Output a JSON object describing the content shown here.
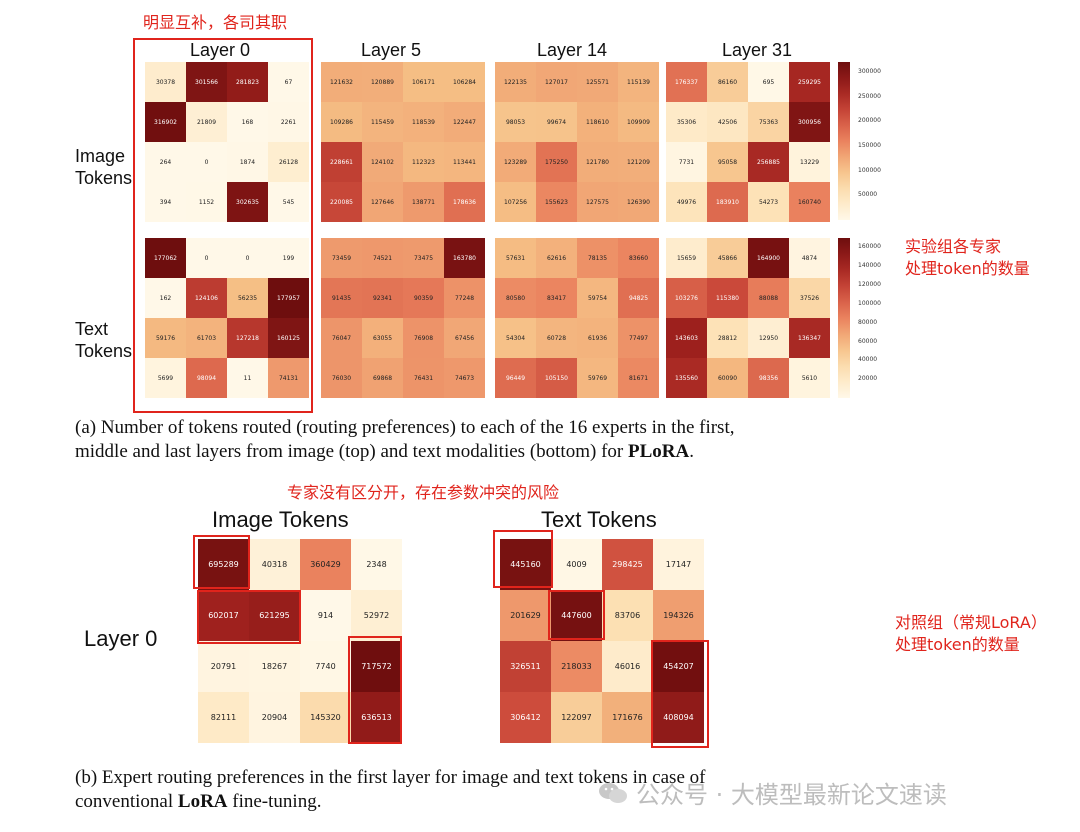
{
  "annotations": {
    "top_note": "明显互补，各司其职",
    "right_note_line1": "实验组各专家",
    "right_note_line2": "处理token的数量",
    "mid_note": "专家没有区分开，存在参数冲突的风险",
    "right_note2_line1": "对照组（常规LoRA）",
    "right_note2_line2": "处理token的数量"
  },
  "row_labels": {
    "image_line1": "Image",
    "image_line2": "Tokens",
    "text_line1": "Text",
    "text_line2": "Tokens",
    "layer0_b": "Layer 0"
  },
  "captions": {
    "a_line1": "(a) Number of tokens routed (routing preferences) to each of the 16 experts in the first,",
    "a_line2_pre": "middle and last layers from image (top) and text modalities (bottom) for ",
    "a_line2_bold": "PLoRA",
    "a_line2_post": ".",
    "b_line1": "(b) Expert routing preferences in the first layer for image and text tokens in case of",
    "b_line2_pre": "conventional ",
    "b_line2_bold": "LoRA",
    "b_line2_post": " fine-tuning."
  },
  "watermark": {
    "icon": "wechat-icon",
    "text": "公众号 · 大模型最新论文速读"
  },
  "chart_data": [
    {
      "type": "heatmap",
      "name": "PLoRA routing (a)",
      "columns": [
        "Layer 0",
        "Layer 5",
        "Layer 14",
        "Layer 31"
      ],
      "image_tokens": {
        "Layer 0": [
          [
            30378,
            301566,
            281823,
            67
          ],
          [
            316902,
            21809,
            168,
            2261
          ],
          [
            264,
            0,
            1874,
            26128
          ],
          [
            394,
            1152,
            302635,
            545
          ]
        ],
        "Layer 5": [
          [
            121632,
            120889,
            106171,
            106284
          ],
          [
            109286,
            115459,
            118539,
            122447
          ],
          [
            228661,
            124102,
            112323,
            113441
          ],
          [
            220085,
            127646,
            138771,
            178636
          ]
        ],
        "Layer 14": [
          [
            122135,
            127017,
            125571,
            115139
          ],
          [
            98053,
            99674,
            118610,
            109909
          ],
          [
            123289,
            175250,
            121780,
            121209
          ],
          [
            107256,
            155623,
            127575,
            126390
          ]
        ],
        "Layer 31": [
          [
            176337,
            86160,
            695,
            259295
          ],
          [
            35306,
            42506,
            75363,
            300956
          ],
          [
            7731,
            95058,
            256885,
            13229
          ],
          [
            49976,
            183910,
            54273,
            160740
          ]
        ]
      },
      "text_tokens": {
        "Layer 0": [
          [
            177062,
            0,
            0,
            199
          ],
          [
            162,
            124106,
            56235,
            177957
          ],
          [
            59176,
            61703,
            127218,
            160125
          ],
          [
            5699,
            98094,
            11,
            74131
          ]
        ],
        "Layer 5": [
          [
            73459,
            74521,
            73475,
            163780
          ],
          [
            91435,
            92341,
            90359,
            77248
          ],
          [
            76047,
            63055,
            76908,
            67456
          ],
          [
            76030,
            69868,
            76431,
            74673
          ]
        ],
        "Layer 14": [
          [
            57631,
            62616,
            78135,
            83660
          ],
          [
            80580,
            83417,
            59754,
            94825
          ],
          [
            54304,
            60728,
            61936,
            77497
          ],
          [
            96449,
            105150,
            59769,
            81671
          ]
        ],
        "Layer 31": [
          [
            15659,
            45866,
            164900,
            4874
          ],
          [
            103276,
            115380,
            88088,
            37526
          ],
          [
            143603,
            28812,
            12950,
            136347
          ],
          [
            135560,
            60090,
            98356,
            5610
          ]
        ]
      },
      "colorbar_image": {
        "min": 0,
        "max": 320000,
        "ticks": [
          "300000",
          "250000",
          "200000",
          "150000",
          "100000",
          "50000"
        ],
        "tick_values": [
          300000,
          250000,
          200000,
          150000,
          100000,
          50000
        ]
      },
      "colorbar_text": {
        "min": 0,
        "max": 170000,
        "ticks": [
          "160000",
          "140000",
          "120000",
          "100000",
          "80000",
          "60000",
          "40000",
          "20000"
        ],
        "tick_values": [
          160000,
          140000,
          120000,
          100000,
          80000,
          60000,
          40000,
          20000
        ]
      }
    },
    {
      "type": "heatmap",
      "name": "Conventional LoRA routing layer 0 (b)",
      "columns": [
        "Image Tokens",
        "Text Tokens"
      ],
      "image_tokens": [
        [
          695289,
          40318,
          360429,
          2348
        ],
        [
          602017,
          621295,
          914,
          52972
        ],
        [
          20791,
          18267,
          7740,
          717572
        ],
        [
          82111,
          20904,
          145320,
          636513
        ]
      ],
      "text_tokens": [
        [
          445160,
          4009,
          298425,
          17147
        ],
        [
          201629,
          447600,
          83706,
          194326
        ],
        [
          326511,
          218033,
          46016,
          454207
        ],
        [
          306412,
          122097,
          171676,
          408094
        ]
      ],
      "max_image": 720000,
      "max_text": 460000
    }
  ]
}
